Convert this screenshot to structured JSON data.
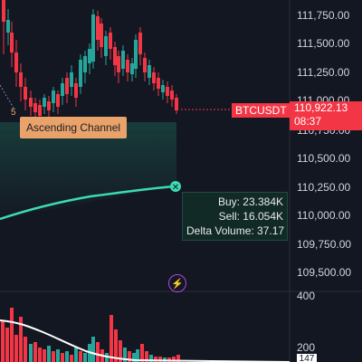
{
  "symbol": "BTCUSDT",
  "current_price": "110,922.13",
  "countdown": "08:37",
  "price_axis": [
    "111,750.00",
    "111,500.00",
    "111,250.00",
    "111,000.00",
    "110,750.00",
    "110,500.00",
    "110,250.00",
    "110,000.00",
    "109,750.00",
    "109,500.00"
  ],
  "channel_label": "Ascending Channel",
  "channel_point_number": "5",
  "tooltip": {
    "buy": "Buy: 23.384K",
    "sell": "Sell: 16.054K",
    "delta": "Delta Volume: 37.17"
  },
  "volume_axis": {
    "top": "400",
    "mid": "200",
    "badge": "147"
  },
  "colors": {
    "background": "#131722",
    "up": "#26a69a",
    "down": "#f23645",
    "delta_line": "#3ddbb2",
    "label_bg": "#e9a36a",
    "lightning": "#b443e6"
  },
  "icons": {
    "lightning": "lightning-icon",
    "close": "close-icon"
  }
}
